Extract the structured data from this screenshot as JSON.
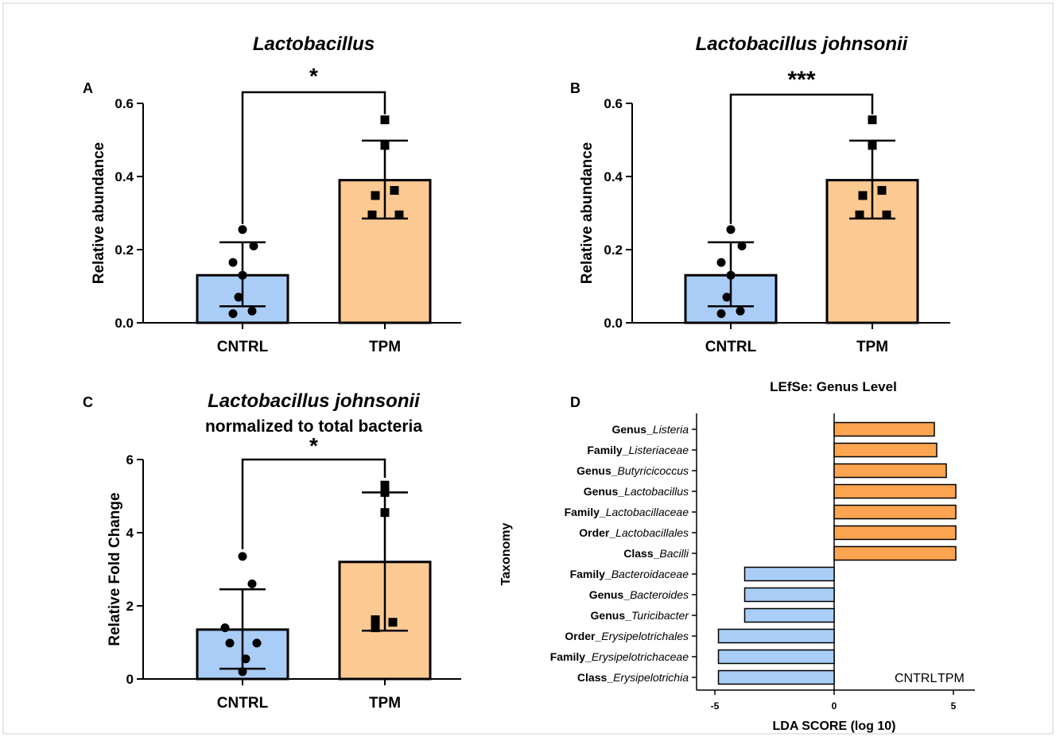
{
  "colors": {
    "cntrl": "#a9cdf7",
    "tpm": "#fdc992",
    "tpm_lefse": "#fda451",
    "cntrl_lefse": "#a9cdf7",
    "legend_cntrl": "#3f7fc8",
    "legend_tpm": "#f07f2a"
  },
  "chart_data": [
    {
      "panel": "A",
      "type": "bar",
      "title": "Lactobacillus",
      "ylabel": "Relative abundance",
      "categories": [
        "CNTRL",
        "TPM"
      ],
      "values": [
        0.13,
        0.39
      ],
      "error": [
        [
          0.045,
          0.22
        ],
        [
          0.285,
          0.498
        ]
      ],
      "ylim": [
        0,
        0.6
      ],
      "yticks": [
        "0.0",
        "0.2",
        "0.4",
        "0.6"
      ],
      "points": [
        [
          0.255,
          0.21,
          0.165,
          0.13,
          0.07,
          0.025,
          0.032
        ],
        [
          0.555,
          0.485,
          0.362,
          0.348,
          0.295,
          0.295
        ]
      ],
      "significance": "*"
    },
    {
      "panel": "B",
      "type": "bar",
      "title": "Lactobacillus johnsonii",
      "ylabel": "Relative abundance",
      "categories": [
        "CNTRL",
        "TPM"
      ],
      "values": [
        0.13,
        0.39
      ],
      "error": [
        [
          0.045,
          0.22
        ],
        [
          0.285,
          0.498
        ]
      ],
      "ylim": [
        0,
        0.6
      ],
      "yticks": [
        "0.0",
        "0.2",
        "0.4",
        "0.6"
      ],
      "points": [
        [
          0.255,
          0.21,
          0.165,
          0.13,
          0.07,
          0.025,
          0.032
        ],
        [
          0.555,
          0.485,
          0.362,
          0.348,
          0.295,
          0.295
        ]
      ],
      "significance": "***"
    },
    {
      "panel": "C",
      "type": "bar",
      "title": "Lactobacillus johnsonii",
      "subtitle": "normalized to total bacteria",
      "ylabel": "Relative Fold Change",
      "categories": [
        "CNTRL",
        "TPM"
      ],
      "values": [
        1.35,
        3.2
      ],
      "error": [
        [
          0.28,
          2.45
        ],
        [
          1.32,
          5.1
        ]
      ],
      "ylim": [
        0,
        6
      ],
      "yticks": [
        "0",
        "2",
        "4",
        "6"
      ],
      "points": [
        [
          3.35,
          2.6,
          1.4,
          0.98,
          0.98,
          0.55,
          0.2
        ],
        [
          5.3,
          5.1,
          4.55,
          1.62,
          1.55,
          1.4
        ]
      ],
      "significance": "*"
    },
    {
      "panel": "D",
      "type": "bar",
      "title": "LEfSe: Genus Level",
      "xlabel": "LDA SCORE (log 10)",
      "ylabel": "Taxonomy",
      "xlim": [
        -5.8,
        5.9
      ],
      "xticks": [
        "-5",
        "0",
        "5"
      ],
      "taxa": [
        {
          "prefix": "Genus_",
          "name": "Listeria",
          "value": 4.2,
          "group": "TPM"
        },
        {
          "prefix": "Family_",
          "name": "Listeriaceae",
          "value": 4.3,
          "group": "TPM"
        },
        {
          "prefix": "Genus_",
          "name": "Butyricicoccus",
          "value": 4.7,
          "group": "TPM"
        },
        {
          "prefix": "Genus_",
          "name": "Lactobacillus",
          "value": 5.1,
          "group": "TPM"
        },
        {
          "prefix": "Family_",
          "name": "Lactobacillaceae",
          "value": 5.1,
          "group": "TPM"
        },
        {
          "prefix": "Order_",
          "name": "Lactobacillales",
          "value": 5.1,
          "group": "TPM"
        },
        {
          "prefix": "Class_",
          "name": "Bacilli",
          "value": 5.1,
          "group": "TPM"
        },
        {
          "prefix": "Family_",
          "name": "Bacteroidaceae",
          "value": -3.75,
          "group": "CNTRL"
        },
        {
          "prefix": "Genus_",
          "name": "Bacteroides",
          "value": -3.75,
          "group": "CNTRL"
        },
        {
          "prefix": "Genus_",
          "name": "Turicibacter",
          "value": -3.75,
          "group": "CNTRL"
        },
        {
          "prefix": "Order_",
          "name": "Erysipelotrichales",
          "value": -4.85,
          "group": "CNTRL"
        },
        {
          "prefix": "Family_",
          "name": "Erysipelotrichaceae",
          "value": -4.85,
          "group": "CNTRL"
        },
        {
          "prefix": "Class_",
          "name": "Erysipelotrichia",
          "value": -4.85,
          "group": "CNTRL"
        }
      ],
      "legend": [
        "CNTRL",
        "TPM"
      ]
    }
  ]
}
